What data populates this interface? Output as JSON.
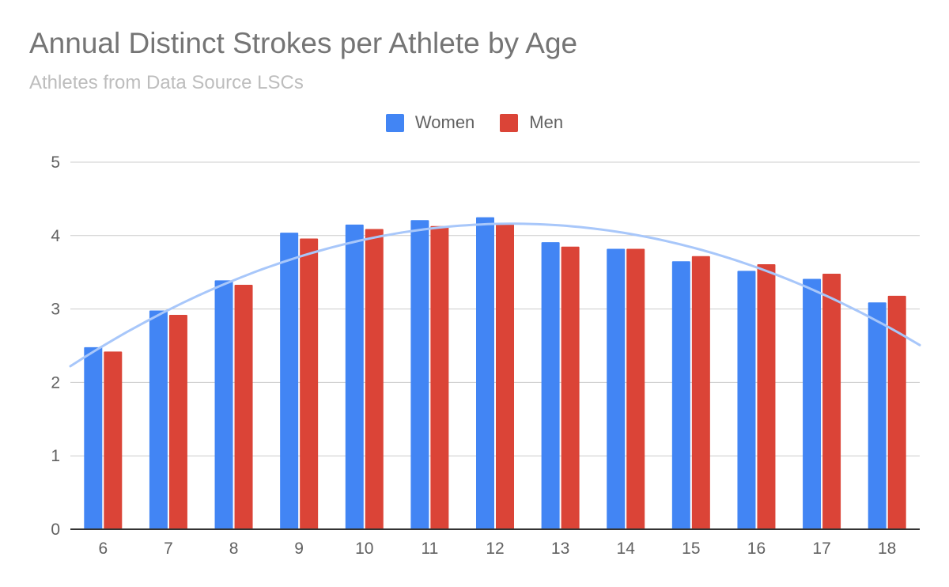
{
  "header": {
    "title": "Annual Distinct Strokes per Athlete by Age",
    "subtitle": "Athletes from Data Source LSCs"
  },
  "chart_data": {
    "type": "bar",
    "title": "Annual Distinct Strokes per Athlete by Age",
    "subtitle": "Athletes from Data Source LSCs",
    "categories": [
      "6",
      "7",
      "8",
      "9",
      "10",
      "11",
      "12",
      "13",
      "14",
      "15",
      "16",
      "17",
      "18"
    ],
    "series": [
      {
        "name": "Women",
        "color": "#4285f4",
        "values": [
          2.48,
          2.98,
          3.39,
          4.04,
          4.15,
          4.21,
          4.25,
          3.91,
          3.82,
          3.65,
          3.52,
          3.41,
          3.09
        ]
      },
      {
        "name": "Men",
        "color": "#db4437",
        "values": [
          2.42,
          2.92,
          3.33,
          3.96,
          4.09,
          4.13,
          4.17,
          3.85,
          3.82,
          3.72,
          3.61,
          3.48,
          3.18
        ]
      }
    ],
    "trendline": {
      "type": "polynomial",
      "color": "#a8c7fa",
      "approx_values": [
        2.43,
        2.99,
        3.43,
        3.76,
        3.99,
        4.11,
        4.15,
        4.11,
        4.0,
        3.8,
        3.54,
        3.21,
        2.82
      ]
    },
    "ylim": [
      0,
      5
    ],
    "yticks": [
      "0",
      "1",
      "2",
      "3",
      "4",
      "5"
    ],
    "xlabel": "",
    "ylabel": "",
    "grid": true,
    "legend_position": "top"
  }
}
